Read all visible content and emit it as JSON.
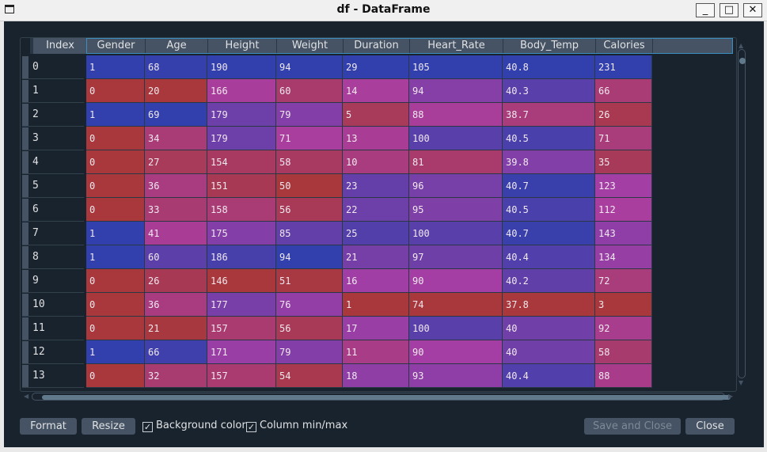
{
  "window": {
    "title": "df - DataFrame",
    "minimize": "_",
    "maximize": "□",
    "close": "✕"
  },
  "table": {
    "index_header": "Index",
    "columns": [
      "Gender",
      "Age",
      "Height",
      "Weight",
      "Duration",
      "Heart_Rate",
      "Body_Temp",
      "Calories"
    ],
    "rows": [
      {
        "index": "0",
        "values": [
          "1",
          "68",
          "190",
          "94",
          "29",
          "105",
          "40.8",
          "231"
        ]
      },
      {
        "index": "1",
        "values": [
          "0",
          "20",
          "166",
          "60",
          "14",
          "94",
          "40.3",
          "66"
        ]
      },
      {
        "index": "2",
        "values": [
          "1",
          "69",
          "179",
          "79",
          "5",
          "88",
          "38.7",
          "26"
        ]
      },
      {
        "index": "3",
        "values": [
          "0",
          "34",
          "179",
          "71",
          "13",
          "100",
          "40.5",
          "71"
        ]
      },
      {
        "index": "4",
        "values": [
          "0",
          "27",
          "154",
          "58",
          "10",
          "81",
          "39.8",
          "35"
        ]
      },
      {
        "index": "5",
        "values": [
          "0",
          "36",
          "151",
          "50",
          "23",
          "96",
          "40.7",
          "123"
        ]
      },
      {
        "index": "6",
        "values": [
          "0",
          "33",
          "158",
          "56",
          "22",
          "95",
          "40.5",
          "112"
        ]
      },
      {
        "index": "7",
        "values": [
          "1",
          "41",
          "175",
          "85",
          "25",
          "100",
          "40.7",
          "143"
        ]
      },
      {
        "index": "8",
        "values": [
          "1",
          "60",
          "186",
          "94",
          "21",
          "97",
          "40.4",
          "134"
        ]
      },
      {
        "index": "9",
        "values": [
          "0",
          "26",
          "146",
          "51",
          "16",
          "90",
          "40.2",
          "72"
        ]
      },
      {
        "index": "10",
        "values": [
          "0",
          "36",
          "177",
          "76",
          "1",
          "74",
          "37.8",
          "3"
        ]
      },
      {
        "index": "11",
        "values": [
          "0",
          "21",
          "157",
          "56",
          "17",
          "100",
          "40",
          "92"
        ]
      },
      {
        "index": "12",
        "values": [
          "1",
          "66",
          "171",
          "79",
          "11",
          "90",
          "40",
          "58"
        ]
      },
      {
        "index": "13",
        "values": [
          "0",
          "32",
          "157",
          "54",
          "18",
          "93",
          "40.4",
          "88"
        ]
      }
    ]
  },
  "colormap": {
    "low": "#a8383c",
    "mid": "#a93ea4",
    "high": "#3140ad"
  },
  "controls": {
    "format_label": "Format",
    "resize_label": "Resize",
    "bg_color_label": "Background color",
    "bg_color_checked": true,
    "minmax_label": "Column min/max",
    "minmax_checked": true,
    "save_close_label": "Save and Close",
    "close_label": "Close"
  }
}
